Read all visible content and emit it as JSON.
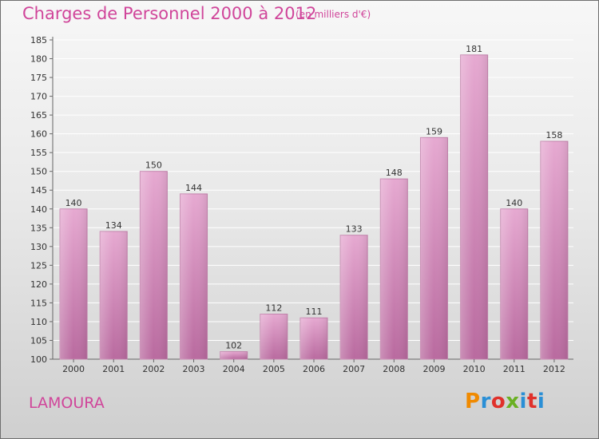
{
  "header": {
    "title": "Charges de Personnel 2000 à 2012",
    "subtitle": "(en milliers d'€)"
  },
  "footer": {
    "location": "LAMOURA",
    "logo_text": "Proxiti",
    "logo_colors": [
      "#f08a00",
      "#2a8fd6",
      "#e0312b",
      "#6ab023",
      "#2a8fd6",
      "#e0312b",
      "#2a8fd6"
    ]
  },
  "colors": {
    "bar": "#d98ec0",
    "bar_light": "#e6a9d1",
    "bar_dark": "#b96a9f",
    "text_accent": "#d0459a"
  },
  "chart_data": {
    "type": "bar",
    "title": "Charges de Personnel 2000 à 2012",
    "subtitle": "(en milliers d'€)",
    "categories": [
      "2000",
      "2001",
      "2002",
      "2003",
      "2004",
      "2005",
      "2006",
      "2007",
      "2008",
      "2009",
      "2010",
      "2011",
      "2012"
    ],
    "values": [
      140,
      134,
      150,
      144,
      102,
      112,
      111,
      133,
      148,
      159,
      181,
      140,
      158
    ],
    "ylim": [
      100,
      185
    ],
    "yticks": [
      100,
      105,
      110,
      115,
      120,
      125,
      130,
      135,
      140,
      145,
      150,
      155,
      160,
      165,
      170,
      175,
      180,
      185
    ],
    "grid": true,
    "legend": "none"
  }
}
